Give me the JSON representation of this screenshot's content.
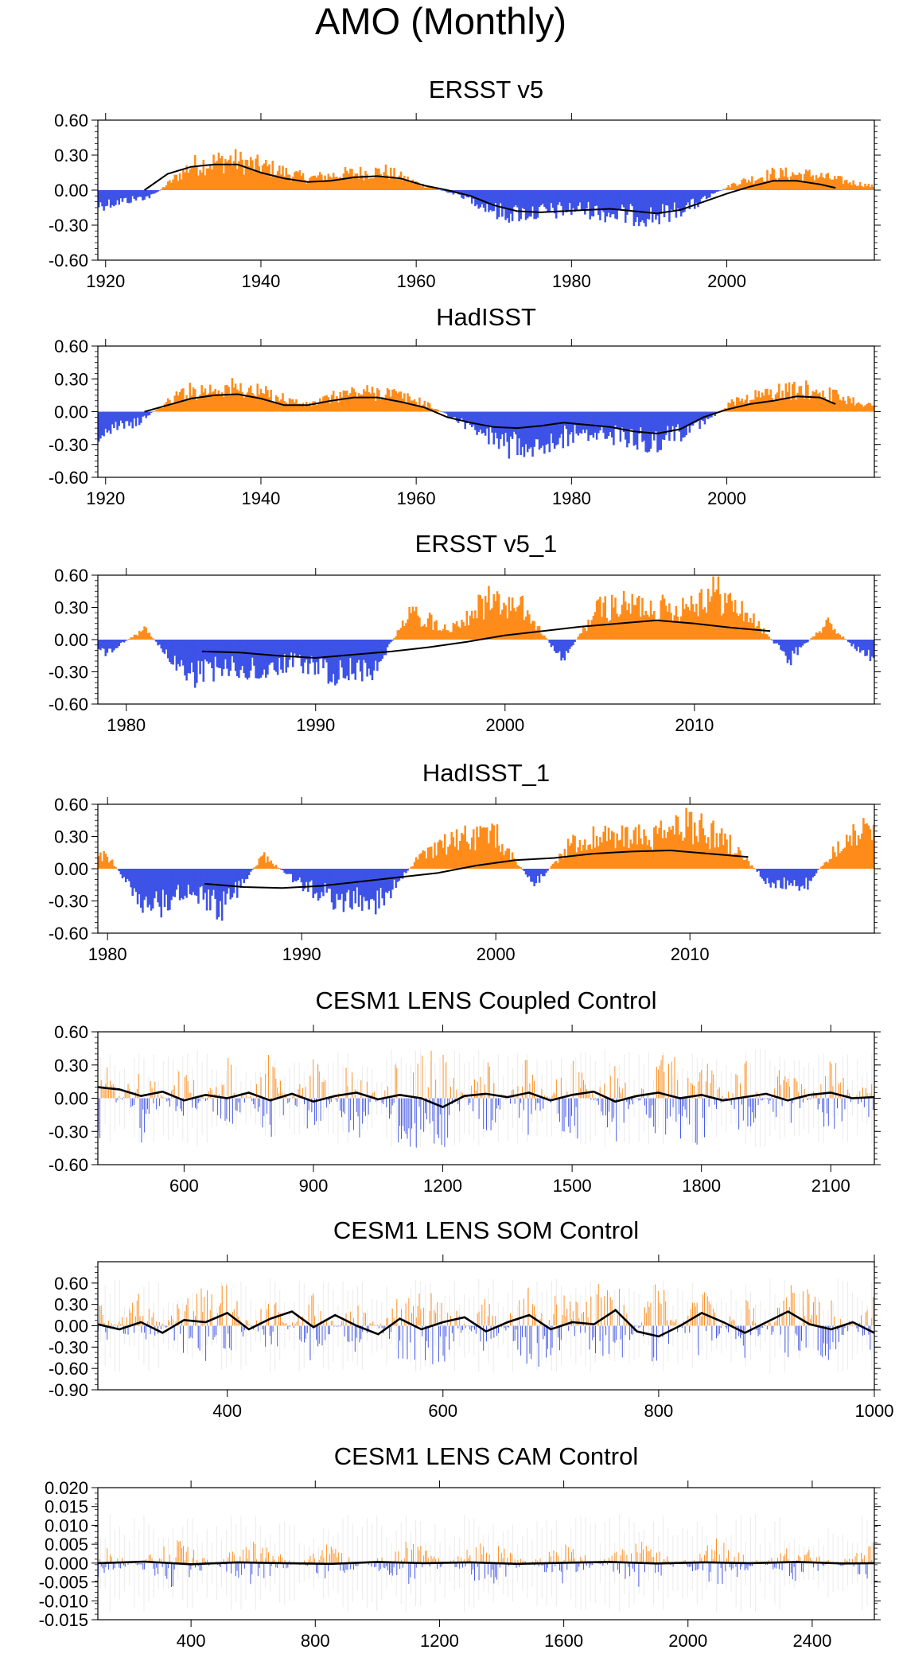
{
  "figure_title": "AMO (Monthly)",
  "colors": {
    "positive": "#ff8c1a",
    "negative": "#3d52e6",
    "line": "#000000",
    "spaghetti": "#c8c8c8",
    "frame": "#000000"
  },
  "chart_data": [
    {
      "type": "bar",
      "title": "ERSST v5",
      "xlabel": "",
      "ylabel": "",
      "xlim": [
        1919,
        2019
      ],
      "ylim": [
        -0.6,
        0.6
      ],
      "xticks": [
        1920,
        1940,
        1960,
        1980,
        2000
      ],
      "xtick_labels": [
        "1920",
        "1940",
        "1960",
        "1980",
        "2000"
      ],
      "yticks": [
        0.6,
        0.3,
        0.0,
        -0.3,
        -0.6
      ],
      "ytick_labels": [
        "0.60",
        "0.30",
        "0.00",
        "-0.30",
        "-0.60"
      ],
      "monthly_amplitude_envelope": {
        "x": [
          1919,
          1926,
          1931,
          1936,
          1941,
          1946,
          1951,
          1956,
          1961,
          1966,
          1971,
          1976,
          1981,
          1986,
          1991,
          1996,
          2001,
          2006,
          2011,
          2019
        ],
        "y": [
          -0.13,
          -0.05,
          0.21,
          0.26,
          0.19,
          0.1,
          0.14,
          0.16,
          0.04,
          -0.05,
          -0.2,
          -0.19,
          -0.16,
          -0.21,
          -0.22,
          -0.12,
          0.06,
          0.14,
          0.13,
          0.03
        ]
      },
      "smoothed_series": {
        "x": [
          1925,
          1928,
          1931,
          1934,
          1937,
          1940,
          1943,
          1946,
          1949,
          1952,
          1955,
          1958,
          1961,
          1964,
          1967,
          1970,
          1973,
          1976,
          1979,
          1982,
          1985,
          1988,
          1991,
          1994,
          1997,
          2000,
          2003,
          2006,
          2009,
          2012,
          2014
        ],
        "y": [
          0.0,
          0.14,
          0.2,
          0.22,
          0.22,
          0.15,
          0.1,
          0.07,
          0.08,
          0.11,
          0.12,
          0.1,
          0.04,
          0.0,
          -0.05,
          -0.13,
          -0.18,
          -0.19,
          -0.18,
          -0.17,
          -0.16,
          -0.18,
          -0.2,
          -0.17,
          -0.1,
          -0.03,
          0.03,
          0.08,
          0.08,
          0.05,
          0.02
        ]
      }
    },
    {
      "type": "bar",
      "title": "HadISST",
      "xlabel": "",
      "ylabel": "",
      "xlim": [
        1919,
        2019
      ],
      "ylim": [
        -0.6,
        0.6
      ],
      "xticks": [
        1920,
        1940,
        1960,
        1980,
        2000
      ],
      "xtick_labels": [
        "1920",
        "1940",
        "1960",
        "1980",
        "2000"
      ],
      "yticks": [
        0.6,
        0.3,
        0.0,
        -0.3,
        -0.6
      ],
      "ytick_labels": [
        "0.60",
        "0.30",
        "0.00",
        "-0.30",
        "-0.60"
      ],
      "monthly_amplitude_envelope": {
        "x": [
          1919,
          1924,
          1930,
          1936,
          1941,
          1946,
          1951,
          1956,
          1961,
          1966,
          1971,
          1976,
          1981,
          1986,
          1991,
          1996,
          2001,
          2006,
          2011,
          2019
        ],
        "y": [
          -0.2,
          -0.1,
          0.18,
          0.22,
          0.16,
          0.06,
          0.17,
          0.18,
          0.08,
          -0.1,
          -0.3,
          -0.28,
          -0.2,
          -0.22,
          -0.27,
          -0.15,
          0.1,
          0.18,
          0.2,
          0.05
        ]
      },
      "smoothed_series": {
        "x": [
          1925,
          1928,
          1931,
          1934,
          1937,
          1940,
          1943,
          1946,
          1949,
          1952,
          1955,
          1958,
          1961,
          1964,
          1967,
          1970,
          1973,
          1976,
          1979,
          1982,
          1985,
          1988,
          1991,
          1994,
          1997,
          2000,
          2003,
          2006,
          2009,
          2012,
          2014
        ],
        "y": [
          0.0,
          0.06,
          0.12,
          0.15,
          0.16,
          0.12,
          0.06,
          0.06,
          0.1,
          0.13,
          0.13,
          0.09,
          0.04,
          -0.05,
          -0.1,
          -0.14,
          -0.15,
          -0.13,
          -0.1,
          -0.12,
          -0.14,
          -0.18,
          -0.2,
          -0.16,
          -0.05,
          0.02,
          0.07,
          0.1,
          0.14,
          0.13,
          0.07
        ]
      }
    },
    {
      "type": "bar",
      "title": "ERSST v5_1",
      "xlabel": "",
      "ylabel": "",
      "xlim": [
        1978.5,
        2019.5
      ],
      "ylim": [
        -0.6,
        0.6
      ],
      "xticks": [
        1980,
        1990,
        2000,
        2010
      ],
      "xtick_labels": [
        "1980",
        "1990",
        "2000",
        "2010"
      ],
      "yticks": [
        0.6,
        0.3,
        0.0,
        -0.3,
        -0.6
      ],
      "ytick_labels": [
        "0.60",
        "0.30",
        "0.00",
        "-0.30",
        "-0.60"
      ],
      "monthly_amplitude_envelope": {
        "x": [
          1979,
          1981,
          1983,
          1985,
          1987,
          1989,
          1991,
          1993,
          1995,
          1997,
          1999,
          2001,
          2003,
          2005,
          2007,
          2009,
          2011,
          2013,
          2015,
          2017,
          2019
        ],
        "y": [
          -0.12,
          0.1,
          -0.35,
          -0.25,
          -0.28,
          -0.2,
          -0.3,
          -0.3,
          0.25,
          0.1,
          0.35,
          0.28,
          -0.18,
          0.3,
          0.32,
          0.28,
          0.45,
          0.2,
          -0.18,
          0.15,
          -0.15
        ]
      },
      "smoothed_series": {
        "x": [
          1984,
          1986,
          1988,
          1990,
          1992,
          1994,
          1996,
          1998,
          2000,
          2002,
          2004,
          2006,
          2008,
          2010,
          2012,
          2014
        ],
        "y": [
          -0.11,
          -0.12,
          -0.15,
          -0.17,
          -0.14,
          -0.11,
          -0.07,
          -0.02,
          0.04,
          0.08,
          0.12,
          0.15,
          0.18,
          0.15,
          0.11,
          0.08
        ]
      }
    },
    {
      "type": "bar",
      "title": "HadISST_1",
      "xlabel": "",
      "ylabel": "",
      "xlim": [
        1979.5,
        2019.5
      ],
      "ylim": [
        -0.6,
        0.6
      ],
      "xticks": [
        1980,
        1990,
        2000,
        2010
      ],
      "xtick_labels": [
        "1980",
        "1990",
        "2000",
        "2010"
      ],
      "yticks": [
        0.6,
        0.3,
        0.0,
        -0.3,
        -0.6
      ],
      "ytick_labels": [
        "0.60",
        "0.30",
        "0.00",
        "-0.30",
        "-0.60"
      ],
      "monthly_amplitude_envelope": {
        "x": [
          1980,
          1982,
          1984,
          1986,
          1988,
          1990,
          1992,
          1994,
          1996,
          1998,
          2000,
          2002,
          2004,
          2006,
          2008,
          2010,
          2012,
          2014,
          2016,
          2018,
          2019
        ],
        "y": [
          0.12,
          -0.38,
          -0.22,
          -0.35,
          0.12,
          -0.15,
          -0.3,
          -0.32,
          0.1,
          0.28,
          0.3,
          -0.15,
          0.25,
          0.3,
          0.28,
          0.42,
          0.25,
          -0.12,
          -0.15,
          0.3,
          0.35
        ]
      },
      "smoothed_series": {
        "x": [
          1985,
          1987,
          1989,
          1991,
          1993,
          1995,
          1997,
          1999,
          2001,
          2003,
          2005,
          2007,
          2009,
          2011,
          2013
        ],
        "y": [
          -0.14,
          -0.17,
          -0.18,
          -0.16,
          -0.12,
          -0.08,
          -0.04,
          0.03,
          0.08,
          0.1,
          0.14,
          0.16,
          0.17,
          0.14,
          0.11
        ]
      }
    },
    {
      "type": "bar",
      "title": "CESM1 LENS Coupled Control",
      "xlabel": "",
      "ylabel": "",
      "xlim": [
        400,
        2201
      ],
      "ylim": [
        -0.6,
        0.6
      ],
      "xticks": [
        600,
        900,
        1200,
        1500,
        1800,
        2100
      ],
      "xtick_labels": [
        "600",
        "900",
        "1200",
        "1500",
        "1800",
        "2100"
      ],
      "yticks": [
        0.6,
        0.3,
        0.0,
        -0.3,
        -0.6
      ],
      "ytick_labels": [
        "0.60",
        "0.30",
        "0.00",
        "-0.30",
        "-0.60"
      ],
      "monthly_amplitude_envelope": {
        "x": [
          400,
          500,
          600,
          700,
          800,
          900,
          1000,
          1100,
          1200,
          1300,
          1400,
          1500,
          1600,
          1700,
          1800,
          1900,
          2000,
          2100,
          2201
        ],
        "y": [
          0.35,
          -0.3,
          0.25,
          -0.28,
          0.3,
          -0.3,
          0.35,
          -0.3,
          -0.35,
          0.3,
          -0.3,
          0.35,
          -0.3,
          0.3,
          0.35,
          -0.3,
          0.3,
          -0.3,
          0.25
        ]
      },
      "smoothed_series": {
        "x": [
          400,
          450,
          500,
          550,
          600,
          650,
          700,
          750,
          800,
          850,
          900,
          950,
          1000,
          1050,
          1100,
          1150,
          1200,
          1250,
          1300,
          1350,
          1400,
          1450,
          1500,
          1550,
          1600,
          1650,
          1700,
          1750,
          1800,
          1850,
          1900,
          1950,
          2000,
          2050,
          2100,
          2150,
          2201
        ],
        "y": [
          0.1,
          0.08,
          0.02,
          0.06,
          -0.02,
          0.03,
          0.0,
          0.05,
          -0.02,
          0.04,
          -0.03,
          0.02,
          0.05,
          -0.01,
          0.03,
          0.0,
          -0.08,
          0.02,
          0.04,
          0.01,
          0.05,
          -0.02,
          0.03,
          0.06,
          -0.03,
          0.02,
          0.05,
          0.0,
          0.03,
          -0.02,
          0.01,
          0.04,
          -0.02,
          0.03,
          0.05,
          0.0,
          0.01
        ]
      }
    },
    {
      "type": "bar",
      "title": "CESM1 LENS SOM Control",
      "xlabel": "",
      "ylabel": "",
      "xlim": [
        280,
        1000
      ],
      "ylim": [
        -0.9,
        0.9
      ],
      "xticks": [
        400,
        600,
        800,
        1000
      ],
      "xtick_labels": [
        "400",
        "600",
        "800",
        "1000"
      ],
      "yticks": [
        0.6,
        0.3,
        0.0,
        -0.3,
        -0.6,
        -0.9
      ],
      "ytick_labels": [
        "0.60",
        "0.30",
        "0.00",
        "-0.30",
        "-0.60",
        "-0.90"
      ],
      "monthly_amplitude_envelope": {
        "x": [
          280,
          320,
          360,
          400,
          440,
          480,
          520,
          560,
          600,
          640,
          680,
          720,
          760,
          800,
          840,
          880,
          920,
          960,
          1000
        ],
        "y": [
          0.3,
          -0.4,
          0.35,
          0.45,
          -0.35,
          0.4,
          -0.3,
          0.35,
          0.4,
          -0.3,
          0.45,
          0.3,
          0.5,
          -0.5,
          0.45,
          -0.4,
          0.45,
          0.35,
          -0.3
        ]
      },
      "smoothed_series": {
        "x": [
          280,
          300,
          320,
          340,
          360,
          380,
          400,
          420,
          440,
          460,
          480,
          500,
          520,
          540,
          560,
          580,
          600,
          620,
          640,
          660,
          680,
          700,
          720,
          740,
          760,
          780,
          800,
          820,
          840,
          860,
          880,
          900,
          920,
          940,
          960,
          980,
          1000
        ],
        "y": [
          0.02,
          -0.05,
          0.05,
          -0.1,
          0.08,
          0.05,
          0.18,
          -0.05,
          0.1,
          0.2,
          -0.02,
          0.15,
          0.0,
          -0.12,
          0.1,
          -0.05,
          0.05,
          0.12,
          -0.08,
          0.05,
          0.15,
          -0.05,
          0.05,
          0.02,
          0.22,
          -0.08,
          -0.15,
          0.0,
          0.18,
          0.05,
          -0.1,
          0.05,
          0.2,
          0.02,
          -0.05,
          0.05,
          -0.1
        ]
      }
    },
    {
      "type": "bar",
      "title": "CESM1 LENS CAM Control",
      "xlabel": "",
      "ylabel": "",
      "xlim": [
        100,
        2600
      ],
      "ylim": [
        -0.015,
        0.02
      ],
      "xticks": [
        400,
        800,
        1200,
        1600,
        2000,
        2400
      ],
      "xtick_labels": [
        "400",
        "800",
        "1200",
        "1600",
        "2000",
        "2400"
      ],
      "yticks": [
        0.02,
        0.015,
        0.01,
        0.005,
        0.0,
        -0.005,
        -0.01,
        -0.015
      ],
      "ytick_labels": [
        "0.020",
        "0.015",
        "0.010",
        "0.005",
        "0.000",
        "-0.005",
        "-0.010",
        "-0.015"
      ],
      "monthly_amplitude_envelope": {
        "x": [
          100,
          350,
          600,
          850,
          1100,
          1350,
          1600,
          1850,
          2100,
          2350,
          2600
        ],
        "y": [
          0.004,
          -0.005,
          0.005,
          -0.004,
          0.005,
          -0.005,
          0.004,
          -0.005,
          0.005,
          -0.004,
          0.004
        ]
      },
      "smoothed_series": {
        "x": [
          100,
          250,
          400,
          550,
          700,
          850,
          1000,
          1150,
          1300,
          1450,
          1600,
          1750,
          1900,
          2050,
          2200,
          2350,
          2500,
          2600
        ],
        "y": [
          0.0,
          0.0004,
          -0.0003,
          0.0002,
          0.0,
          -0.0002,
          0.0003,
          0.0,
          0.0002,
          -0.0002,
          0.0001,
          0.0003,
          -0.0001,
          0.0002,
          0.0,
          0.0003,
          -0.0001,
          0.0
        ]
      }
    }
  ]
}
